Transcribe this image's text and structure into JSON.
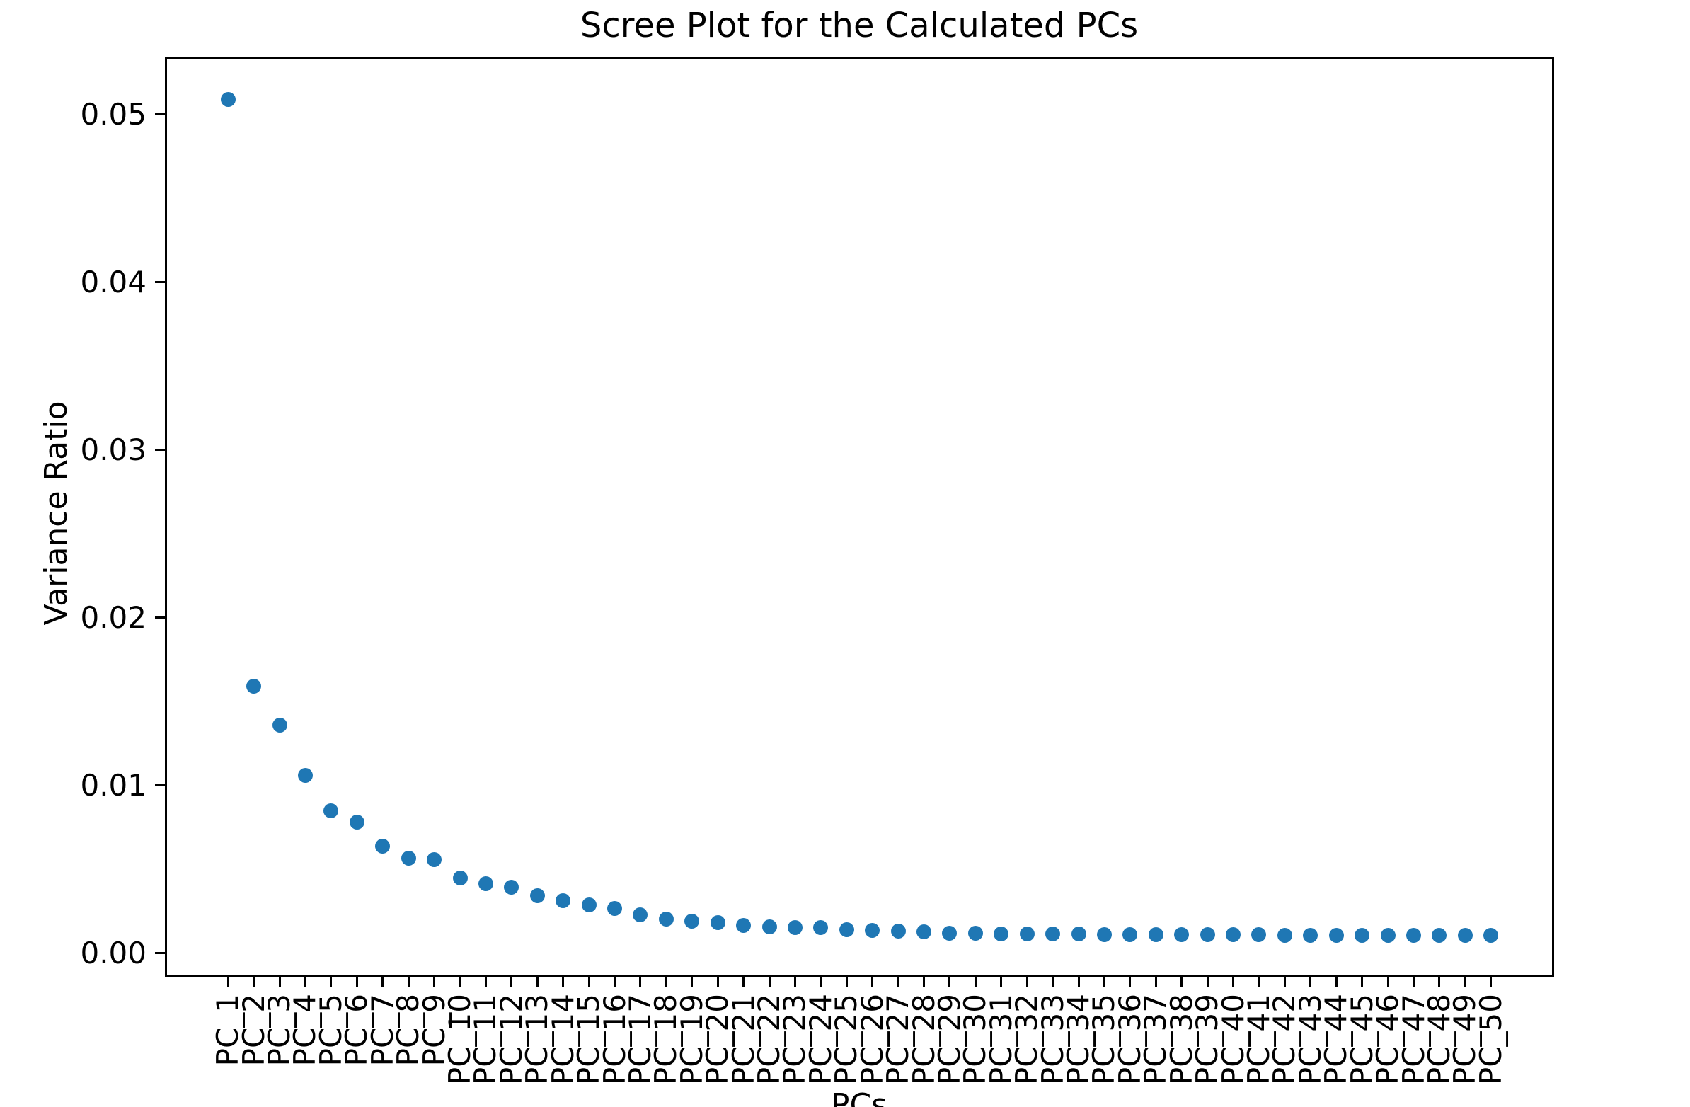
{
  "chart_data": {
    "type": "scatter",
    "title": "Scree Plot for the Calculated PCs",
    "xlabel": "PCs",
    "ylabel": "Variance Ratio",
    "categories": [
      "PC_1",
      "PC_2",
      "PC_3",
      "PC_4",
      "PC_5",
      "PC_6",
      "PC_7",
      "PC_8",
      "PC_9",
      "PC_10",
      "PC_11",
      "PC_12",
      "PC_13",
      "PC_14",
      "PC_15",
      "PC_16",
      "PC_17",
      "PC_18",
      "PC_19",
      "PC_20",
      "PC_21",
      "PC_22",
      "PC_23",
      "PC_24",
      "PC_25",
      "PC_26",
      "PC_27",
      "PC_28",
      "PC_29",
      "PC_30",
      "PC_31",
      "PC_32",
      "PC_33",
      "PC_34",
      "PC_35",
      "PC_36",
      "PC_37",
      "PC_38",
      "PC_39",
      "PC_40",
      "PC_41",
      "PC_42",
      "PC_43",
      "PC_44",
      "PC_45",
      "PC_46",
      "PC_47",
      "PC_48",
      "PC_49",
      "PC_50"
    ],
    "values": [
      0.0509,
      0.0159,
      0.0136,
      0.0106,
      0.0085,
      0.0078,
      0.0064,
      0.00565,
      0.0056,
      0.00447,
      0.00413,
      0.00392,
      0.00345,
      0.00315,
      0.00289,
      0.00265,
      0.00228,
      0.00205,
      0.00193,
      0.00181,
      0.00167,
      0.00158,
      0.00153,
      0.00152,
      0.00141,
      0.00137,
      0.00131,
      0.00127,
      0.00121,
      0.00119,
      0.00117,
      0.00116,
      0.00115,
      0.00114,
      0.00113,
      0.00112,
      0.00111,
      0.0011,
      0.0011,
      0.00109,
      0.00109,
      0.00108,
      0.00108,
      0.00107,
      0.00107,
      0.00106,
      0.00106,
      0.00106,
      0.00105,
      0.00105
    ],
    "yticks": [
      0.0,
      0.01,
      0.02,
      0.03,
      0.04,
      0.05
    ],
    "ytick_labels": [
      "0.00",
      "0.01",
      "0.02",
      "0.03",
      "0.04",
      "0.05"
    ],
    "ylim": [
      -0.0014,
      0.0534
    ],
    "xlim_index": [
      -2.45,
      51.45
    ],
    "grid": false,
    "legend": "none",
    "marker_color": "#1f77b4",
    "axis_color": "#000000",
    "background_color": "#ffffff"
  }
}
